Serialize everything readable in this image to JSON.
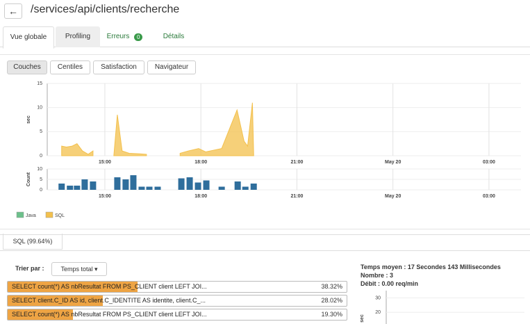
{
  "header": {
    "title": "/services/api/clients/recherche"
  },
  "tabs": [
    "Vue globale",
    "Profiling",
    "Erreurs",
    "Détails"
  ],
  "errors_badge": 0,
  "buttons": [
    "Couches",
    "Centiles",
    "Satisfaction",
    "Navigateur"
  ],
  "time_chart": {
    "type": "area",
    "y_label": "sec",
    "xlim": [
      13.2,
      28
    ],
    "xticks": [
      {
        "value": 15,
        "label": "15:00"
      },
      {
        "value": 18,
        "label": "18:00"
      },
      {
        "value": 21,
        "label": "21:00"
      },
      {
        "value": 24,
        "label": "May 20"
      },
      {
        "value": 27,
        "label": "03:00"
      }
    ],
    "ylim": [
      0,
      15
    ],
    "yticks": [
      0,
      5,
      10,
      15
    ],
    "grid": true,
    "series": [
      {
        "name": "SQL",
        "color": "#f3c04c",
        "x": [
          13.65,
          13.8,
          13.98,
          14.13,
          14.3,
          14.48,
          14.63,
          null,
          15.28,
          15.39,
          15.54,
          15.76,
          16.09,
          16.3,
          null,
          17.35,
          17.61,
          17.93,
          18.15,
          18.65,
          19.13,
          19.35,
          19.46,
          19.61,
          19.65
        ],
        "values": [
          2,
          1.8,
          2,
          2.5,
          1,
          0.3,
          1,
          null,
          0,
          8.5,
          1,
          0.5,
          0.4,
          0.3,
          null,
          0.5,
          1,
          1.5,
          0.8,
          1.5,
          9.5,
          3,
          2,
          11,
          0
        ]
      }
    ]
  },
  "count_chart": {
    "type": "bar",
    "y_label": "Count",
    "xlim": [
      13.2,
      28
    ],
    "xticks": [
      {
        "value": 15,
        "label": "15:00"
      },
      {
        "value": 18,
        "label": "18:00"
      },
      {
        "value": 21,
        "label": "21:00"
      },
      {
        "value": 24,
        "label": "May 20"
      },
      {
        "value": 27,
        "label": "03:00"
      }
    ],
    "ylim": [
      0,
      10
    ],
    "yticks": [
      0,
      5,
      10
    ],
    "grid": true,
    "series": [
      {
        "color": "#2f6e9c",
        "x": [
          13.65,
          13.91,
          14.13,
          14.37,
          14.63,
          15.39,
          15.65,
          15.89,
          16.15,
          16.39,
          16.65,
          17.39,
          17.65,
          17.91,
          18.17,
          18.65,
          19.15,
          19.39,
          19.65
        ],
        "values": [
          3,
          2,
          2,
          5,
          4,
          6,
          5,
          7,
          1.5,
          1.5,
          1.5,
          5.5,
          6,
          3.5,
          4.5,
          1.5,
          4,
          1.5,
          3
        ]
      }
    ]
  },
  "legend": [
    {
      "name": "Java",
      "color": "#6cc08b"
    },
    {
      "name": "SQL",
      "color": "#f3c04c"
    }
  ],
  "sql_tab": "SQL (99.64%)",
  "sort": {
    "label": "Trier par :",
    "value": "Temps total"
  },
  "queries": {
    "texts": [
      "SELECT count(*) AS nbResultat FROM PS_CLIENT client LEFT JOI...",
      "SELECT client.C_ID AS id, client.C_IDENTITE AS identite, client.C_...",
      "SELECT count(*) AS nbResultat FROM PS_CLIENT client LEFT JOI..."
    ],
    "values": [
      38.32,
      28.02,
      19.3
    ],
    "value_labels": [
      "38.32%",
      "28.02%",
      "19.30%"
    ],
    "color": "#eea444"
  },
  "summary": [
    "Temps moyen : 17 Secondes 143 Millisecondes",
    "Nombre : 3",
    "Débit : 0.00 req/min"
  ],
  "mini_chart": {
    "y_label": "sec",
    "ylim": [
      12,
      35
    ],
    "yticks": [
      20,
      30
    ]
  }
}
